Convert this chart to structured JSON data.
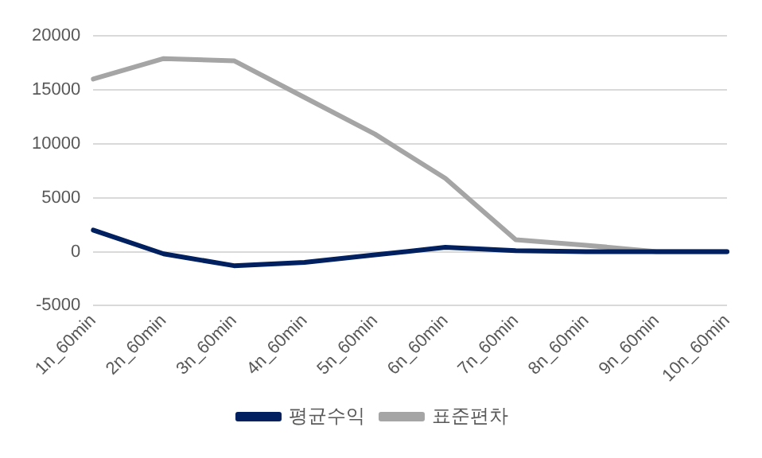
{
  "chart_data": {
    "type": "line",
    "categories": [
      "1n_60min",
      "2n_60min",
      "3n_60min",
      "4n_60min",
      "5n_60min",
      "6n_60min",
      "7n_60min",
      "8n_60min",
      "9n_60min",
      "10n_60min"
    ],
    "series": [
      {
        "name": "평균수익",
        "color": "#002060",
        "values": [
          2000,
          -200,
          -1300,
          -1000,
          -300,
          400,
          100,
          0,
          0,
          0
        ]
      },
      {
        "name": "표준편차",
        "color": "#a5a5a5",
        "values": [
          16000,
          17900,
          17700,
          14300,
          10900,
          6800,
          1100,
          600,
          0,
          0
        ]
      }
    ],
    "ylim": [
      -5000,
      20000
    ],
    "yticks": [
      -5000,
      0,
      5000,
      10000,
      15000,
      20000
    ],
    "grid": "y",
    "legend": "bottom",
    "marker": "none",
    "line_style": "solid"
  }
}
